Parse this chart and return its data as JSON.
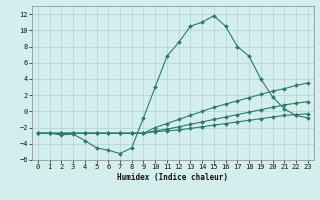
{
  "xlabel": "Humidex (Indice chaleur)",
  "x": [
    0,
    1,
    2,
    3,
    4,
    5,
    6,
    7,
    8,
    9,
    10,
    11,
    12,
    13,
    14,
    15,
    16,
    17,
    18,
    19,
    20,
    21,
    22,
    23
  ],
  "line1": [
    -2.7,
    -2.7,
    -2.9,
    -2.8,
    -3.6,
    -4.5,
    -4.8,
    -5.2,
    -4.5,
    -0.8,
    3.0,
    6.8,
    8.5,
    10.5,
    11.0,
    11.8,
    10.5,
    8.0,
    6.8,
    4.0,
    1.8,
    0.3,
    -0.5,
    -0.8
  ],
  "line2": [
    -2.7,
    -2.7,
    -2.7,
    -2.7,
    -2.7,
    -2.7,
    -2.7,
    -2.7,
    -2.7,
    -2.7,
    -2.0,
    -1.5,
    -1.0,
    -0.5,
    0.0,
    0.5,
    0.9,
    1.3,
    1.7,
    2.1,
    2.5,
    2.8,
    3.2,
    3.5
  ],
  "line3": [
    -2.7,
    -2.7,
    -2.7,
    -2.7,
    -2.7,
    -2.7,
    -2.7,
    -2.7,
    -2.7,
    -2.7,
    -2.4,
    -2.2,
    -1.9,
    -1.6,
    -1.3,
    -1.0,
    -0.7,
    -0.4,
    -0.1,
    0.2,
    0.5,
    0.8,
    1.0,
    1.2
  ],
  "line4": [
    -2.7,
    -2.7,
    -2.7,
    -2.7,
    -2.7,
    -2.7,
    -2.7,
    -2.7,
    -2.7,
    -2.7,
    -2.5,
    -2.4,
    -2.3,
    -2.1,
    -1.9,
    -1.7,
    -1.5,
    -1.3,
    -1.1,
    -0.9,
    -0.7,
    -0.5,
    -0.4,
    -0.3
  ],
  "line_color": "#2a7a6e",
  "bg_color": "#d4eeed",
  "grid_color": "#aed4d0",
  "ylim": [
    -6,
    13
  ],
  "xlim": [
    -0.5,
    23.5
  ]
}
